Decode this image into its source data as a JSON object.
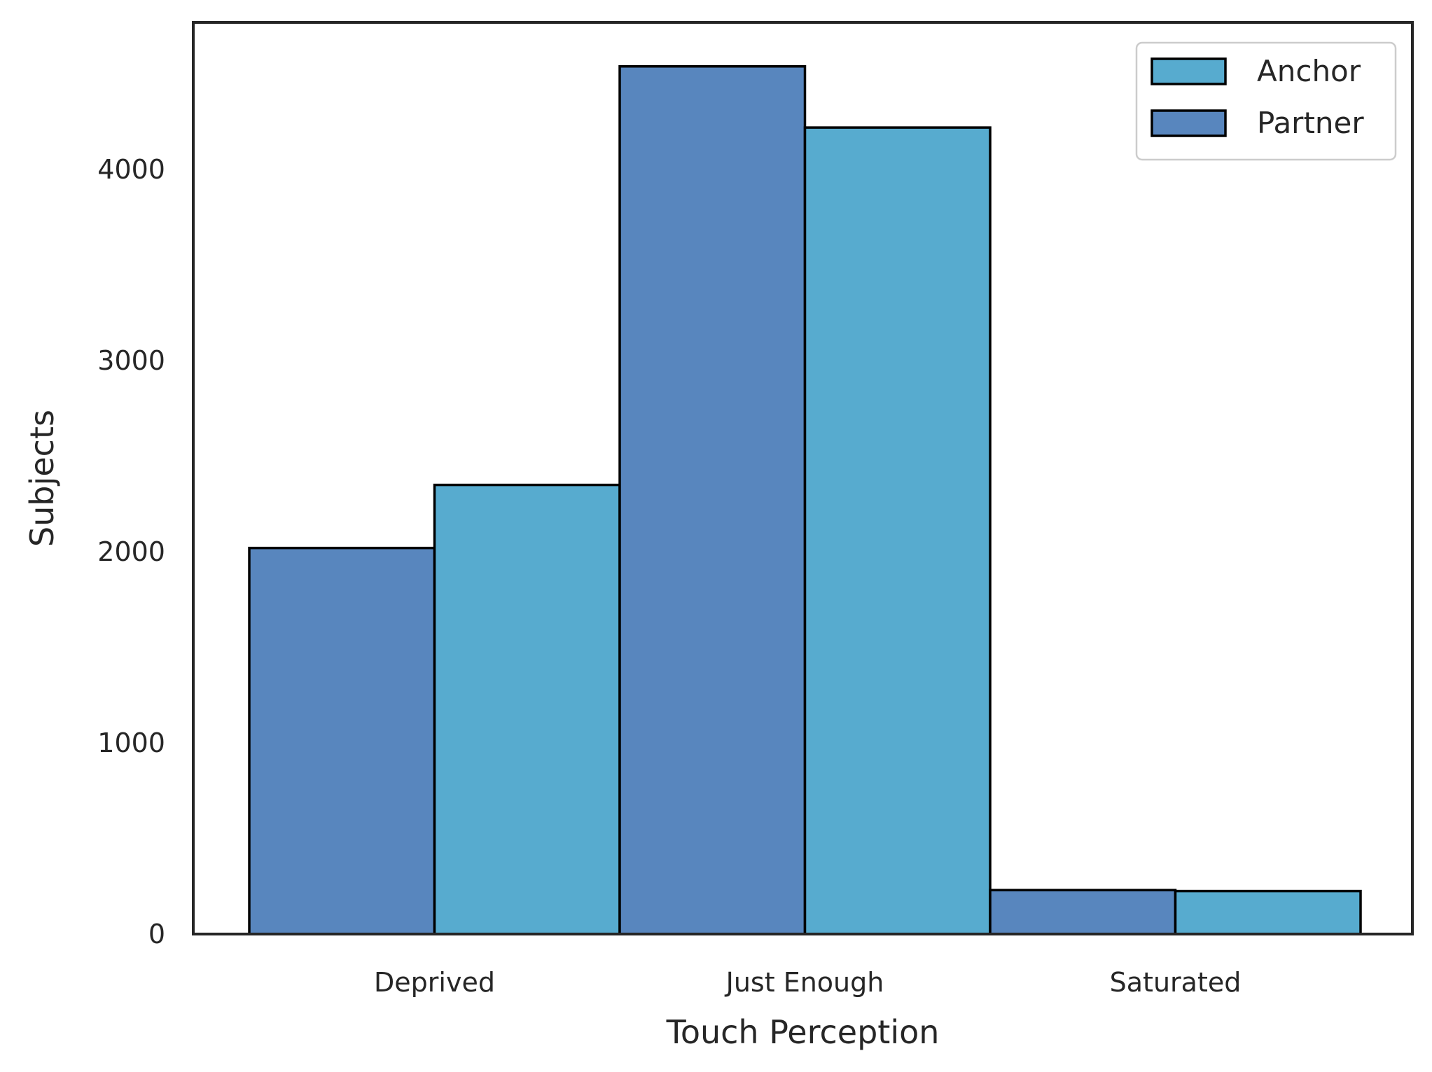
{
  "chart_data": {
    "type": "bar",
    "categories": [
      "Deprived",
      "Just Enough",
      "Saturated"
    ],
    "series": [
      {
        "name": "Partner",
        "values": [
          2020,
          4540,
          230
        ],
        "color": "#5886be"
      },
      {
        "name": "Anchor",
        "values": [
          2350,
          4220,
          225
        ],
        "color": "#57abcf"
      }
    ],
    "legend_order": [
      "Anchor",
      "Partner"
    ],
    "xlabel": "Touch Perception",
    "ylabel": "Subjects",
    "yticks": [
      0,
      1000,
      2000,
      3000,
      4000
    ],
    "ylim": [
      0,
      4770
    ],
    "legend_position": "top-right",
    "grid": false,
    "edge_color": "#000000",
    "spine_color": "#262626"
  }
}
